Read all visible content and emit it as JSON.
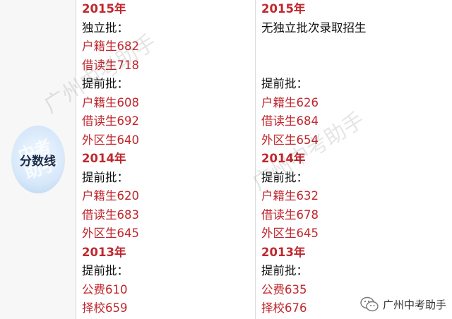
{
  "label": "分数线",
  "label_watermark": "中考助手",
  "watermarks": [
    "广州中考助手",
    "广州中考助手"
  ],
  "logo": "广州中考助手",
  "blocks": [
    {
      "left": [
        {
          "text": "2015年",
          "kind": "year"
        },
        {
          "text": "独立批：",
          "kind": "heading"
        },
        {
          "text": "户籍生682",
          "kind": "score"
        },
        {
          "text": "借读生718",
          "kind": "score"
        }
      ],
      "right": [
        {
          "text": "2015年",
          "kind": "year"
        },
        {
          "text": "无独立批次录取招生",
          "kind": "heading"
        }
      ]
    },
    {
      "left": [
        {
          "text": "提前批：",
          "kind": "heading"
        },
        {
          "text": "户籍生608",
          "kind": "score"
        },
        {
          "text": "借读生692",
          "kind": "score"
        },
        {
          "text": "外区生640",
          "kind": "score"
        }
      ],
      "right": [
        {
          "text": "提前批：",
          "kind": "heading"
        },
        {
          "text": "户籍生626",
          "kind": "score"
        },
        {
          "text": "借读生684",
          "kind": "score"
        },
        {
          "text": "外区生654",
          "kind": "score"
        }
      ]
    },
    {
      "left": [
        {
          "text": "2014年",
          "kind": "year"
        },
        {
          "text": "提前批：",
          "kind": "heading"
        },
        {
          "text": "户籍生620",
          "kind": "score"
        },
        {
          "text": "借读生683",
          "kind": "score"
        },
        {
          "text": "外区生645",
          "kind": "score"
        }
      ],
      "right": [
        {
          "text": "2014年",
          "kind": "year"
        },
        {
          "text": "提前批：",
          "kind": "heading"
        },
        {
          "text": "户籍生632",
          "kind": "score"
        },
        {
          "text": "借读生678",
          "kind": "score"
        },
        {
          "text": "外区生645",
          "kind": "score"
        }
      ]
    },
    {
      "left": [
        {
          "text": "2013年",
          "kind": "year"
        },
        {
          "text": "提前批：",
          "kind": "heading"
        },
        {
          "text": "公费610",
          "kind": "score"
        },
        {
          "text": "择校659",
          "kind": "score"
        }
      ],
      "right": [
        {
          "text": "2013年",
          "kind": "year"
        },
        {
          "text": "提前批：",
          "kind": "heading"
        },
        {
          "text": "公费635",
          "kind": "score"
        },
        {
          "text": "择校676",
          "kind": "score"
        }
      ]
    }
  ]
}
